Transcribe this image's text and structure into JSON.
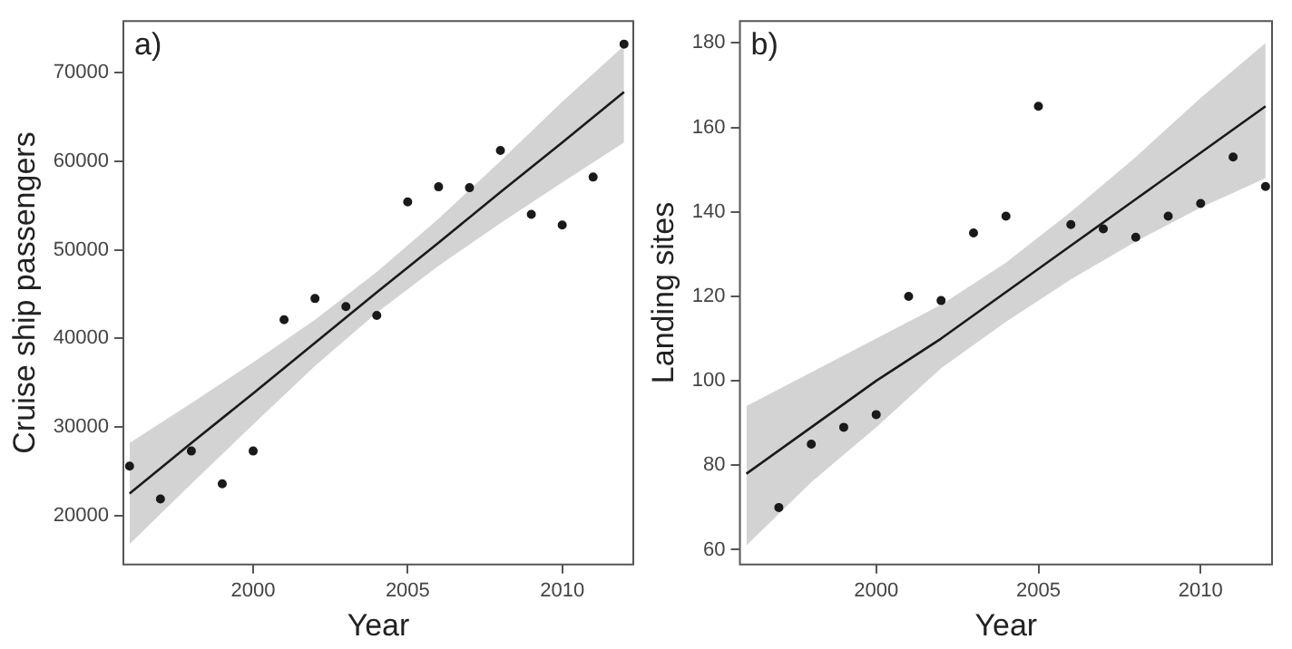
{
  "chart_data": [
    {
      "type": "scatter",
      "xlabel": "Year",
      "ylabel": "Cruise ship passengers",
      "annotations": [
        "a)"
      ],
      "xlim": [
        1995.8,
        2012.3
      ],
      "ylim": [
        14500,
        75800
      ],
      "xticks": [
        2000,
        2005,
        2010
      ],
      "yticks": [
        20000,
        30000,
        40000,
        50000,
        60000,
        70000
      ],
      "grid": false,
      "legend": false,
      "series": [
        {
          "color": "#1a1a1a",
          "marker": "circle",
          "x": [
            1996,
            1997,
            1998,
            1999,
            2000,
            2001,
            2002,
            2003,
            2004,
            2005,
            2006,
            2007,
            2008,
            2009,
            2010,
            2011,
            2012
          ],
          "values": [
            25600,
            21900,
            27300,
            23600,
            27300,
            42100,
            44500,
            43600,
            42600,
            55400,
            57100,
            57000,
            61200,
            54000,
            52800,
            58200,
            73200
          ]
        },
        {
          "type": "line",
          "color": "#1a1a1a",
          "marker": "none",
          "x": [
            1996,
            1998,
            2000,
            2002,
            2004,
            2006,
            2008,
            2010,
            2012
          ],
          "values": [
            22500,
            28200,
            33800,
            39500,
            45200,
            50800,
            56500,
            62100,
            67800
          ],
          "lower": [
            16800,
            23600,
            30300,
            36900,
            42900,
            48200,
            53000,
            57600,
            62100
          ],
          "upper": [
            28200,
            32700,
            37300,
            42100,
            47500,
            53500,
            60000,
            66700,
            73000
          ]
        }
      ]
    },
    {
      "type": "scatter",
      "xlabel": "Year",
      "ylabel": "Landing sites",
      "annotations": [
        "b)"
      ],
      "xlim": [
        1995.8,
        2012.2
      ],
      "ylim": [
        56.5,
        185.2
      ],
      "xticks": [
        2000,
        2005,
        2010
      ],
      "yticks": [
        60,
        80,
        100,
        120,
        140,
        160,
        180
      ],
      "grid": false,
      "legend": false,
      "series": [
        {
          "color": "#1a1a1a",
          "marker": "circle",
          "x": [
            1997,
            1998,
            1999,
            2000,
            2001,
            2002,
            2003,
            2004,
            2005,
            2006,
            2007,
            2008,
            2009,
            2010,
            2011,
            2012
          ],
          "values": [
            70,
            85,
            89,
            92,
            120,
            119,
            135,
            139,
            165,
            137,
            136,
            134,
            139,
            142,
            153,
            146
          ]
        },
        {
          "type": "line",
          "color": "#1a1a1a",
          "marker": "none",
          "x": [
            1996,
            1998,
            2000,
            2002,
            2004,
            2006,
            2008,
            2010,
            2012
          ],
          "values": [
            78,
            89,
            100,
            110,
            121,
            132,
            143,
            154,
            165
          ],
          "lower": [
            61,
            76,
            89,
            103,
            114,
            124,
            133,
            141,
            148
          ],
          "upper": [
            94,
            102,
            110,
            118,
            128,
            140,
            153,
            167,
            180
          ]
        }
      ]
    }
  ]
}
